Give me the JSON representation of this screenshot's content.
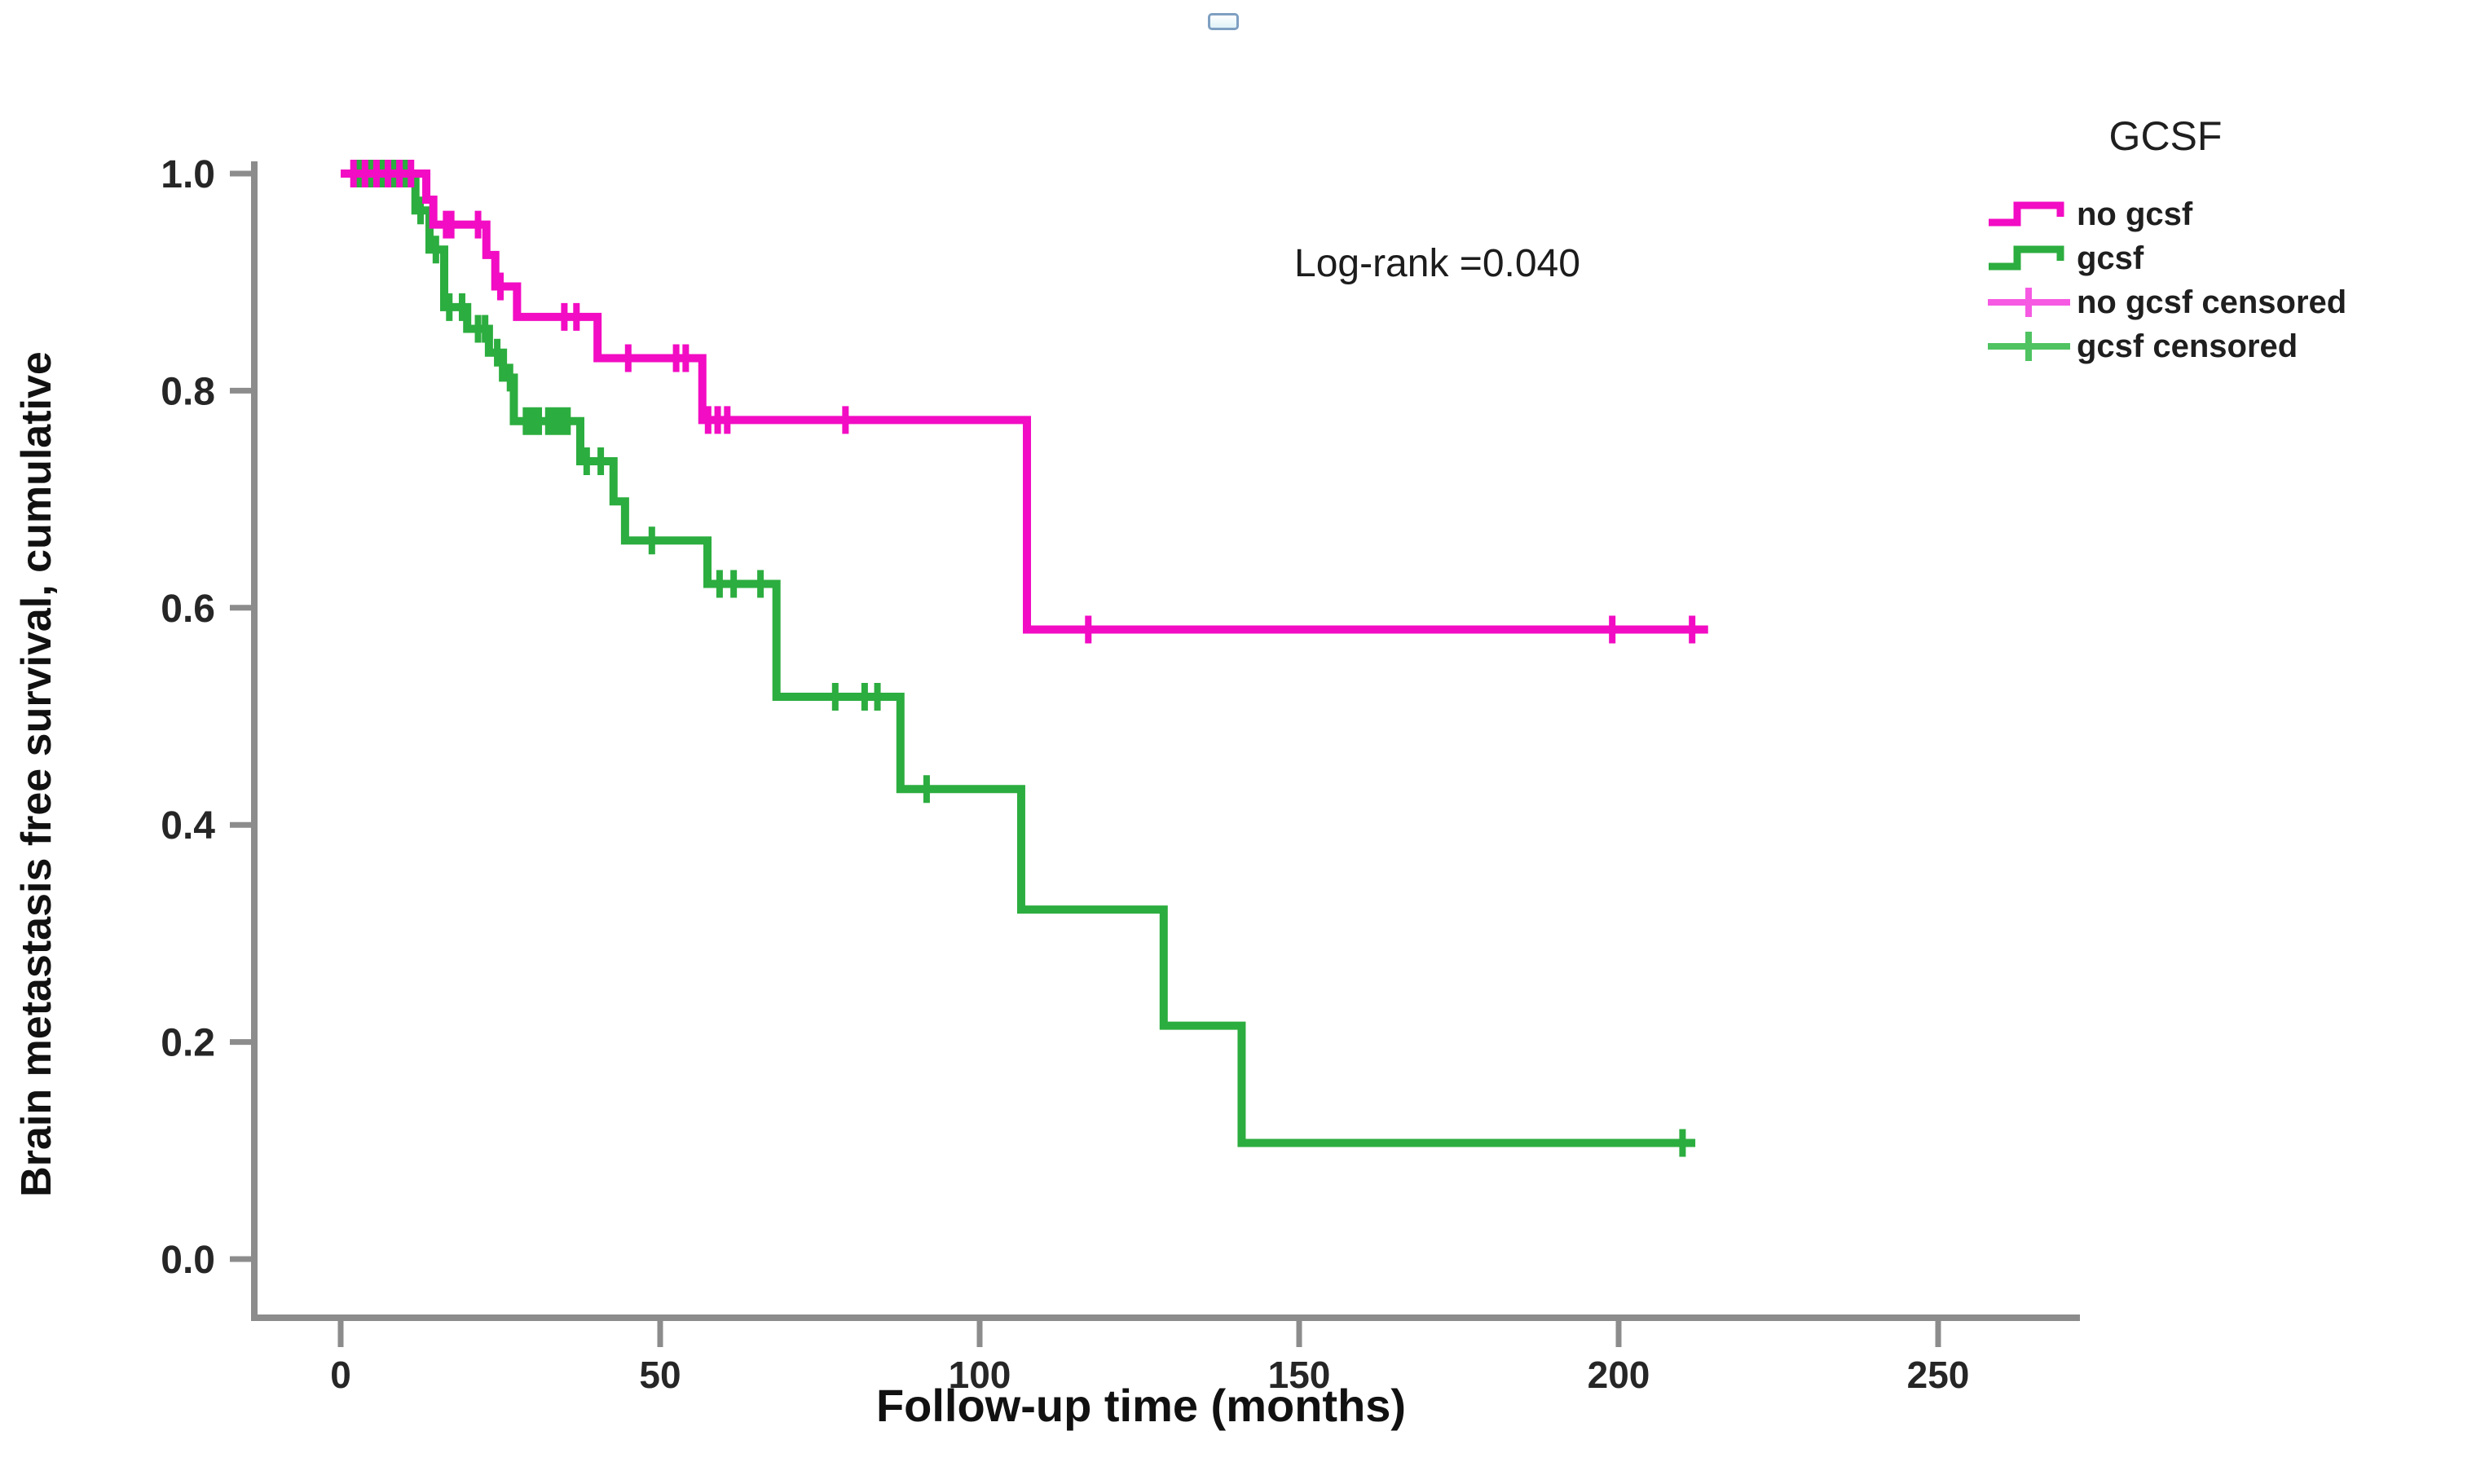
{
  "page": {
    "background": "#ffffff"
  },
  "icons": {
    "collapsed_image_placeholder": "small rounded rectangle, blue border, light fill"
  },
  "colors": {
    "no_gcsf": "#f20cc3",
    "gcsf": "#2cad3f",
    "no_gcsf_censored": "#f65ae3",
    "gcsf_censored": "#4fc361",
    "axis": "#8c8c8c",
    "text": "#111111"
  },
  "annotation": {
    "log_rank": "Log-rank =0.040"
  },
  "legend": {
    "title": "GCSF",
    "items": [
      {
        "label": "no gcsf",
        "marker": "step-line",
        "color_key": "no_gcsf"
      },
      {
        "label": "gcsf",
        "marker": "step-line",
        "color_key": "gcsf"
      },
      {
        "label": "no gcsf censored",
        "marker": "plus-line",
        "color_key": "no_gcsf_censored"
      },
      {
        "label": "gcsf censored",
        "marker": "plus-line",
        "color_key": "gcsf_censored"
      }
    ]
  },
  "chart_data": {
    "type": "line",
    "subtype": "kaplan-meier-step",
    "title": "",
    "xlabel": "Follow-up time (months)",
    "ylabel": "Brain metastasis free survival, cumulative",
    "annotation": "Log-rank =0.040",
    "grid": false,
    "legend_position": "right",
    "xlim": [
      0,
      265
    ],
    "ylim": [
      0.0,
      1.05
    ],
    "x_ticks": [
      0,
      50,
      100,
      150,
      200,
      250
    ],
    "y_ticks": [
      "0.0",
      "0.2",
      "0.4",
      "0.6",
      "0.8",
      "1.0"
    ],
    "series": [
      {
        "name": "gcsf",
        "color_key": "gcsf",
        "censor_color_key": "gcsf",
        "end_time": 212,
        "steps": [
          [
            0,
            1.0
          ],
          [
            11.7,
            0.966
          ],
          [
            13.9,
            0.93
          ],
          [
            16.2,
            0.877
          ],
          [
            19.8,
            0.857
          ],
          [
            23.2,
            0.835
          ],
          [
            25.4,
            0.812
          ],
          [
            27.1,
            0.772
          ],
          [
            37.5,
            0.735
          ],
          [
            42.7,
            0.698
          ],
          [
            44.5,
            0.662
          ],
          [
            57.4,
            0.622
          ],
          [
            68.2,
            0.518
          ],
          [
            87.6,
            0.433
          ],
          [
            106.5,
            0.322
          ],
          [
            128.8,
            0.215
          ],
          [
            141,
            0.107
          ]
        ],
        "censored": [
          [
            2.9,
            1.0
          ],
          [
            4.7,
            1.0
          ],
          [
            6.5,
            1.0
          ],
          [
            8.3,
            1.0
          ],
          [
            10.1,
            1.0
          ],
          [
            12.5,
            0.966
          ],
          [
            14.9,
            0.93
          ],
          [
            17.0,
            0.877
          ],
          [
            19.0,
            0.877
          ],
          [
            21.5,
            0.857
          ],
          [
            22.6,
            0.857
          ],
          [
            24.5,
            0.835
          ],
          [
            26.5,
            0.812
          ],
          [
            29,
            0.772
          ],
          [
            30,
            0.772
          ],
          [
            31,
            0.772
          ],
          [
            32.5,
            0.772
          ],
          [
            33.5,
            0.772
          ],
          [
            34.5,
            0.772
          ],
          [
            35.5,
            0.772
          ],
          [
            38.5,
            0.735
          ],
          [
            40.7,
            0.735
          ],
          [
            48.7,
            0.662
          ],
          [
            59.3,
            0.622
          ],
          [
            61.5,
            0.622
          ],
          [
            65.7,
            0.622
          ],
          [
            77.4,
            0.518
          ],
          [
            82,
            0.518
          ],
          [
            84,
            0.518
          ],
          [
            91.7,
            0.433
          ],
          [
            210,
            0.107
          ]
        ]
      },
      {
        "name": "no gcsf",
        "color_key": "no_gcsf",
        "censor_color_key": "no_gcsf",
        "end_time": 214,
        "steps": [
          [
            0,
            1.0
          ],
          [
            13.4,
            0.976
          ],
          [
            14.5,
            0.953
          ],
          [
            22.8,
            0.925
          ],
          [
            24.2,
            0.896
          ],
          [
            27.6,
            0.868
          ],
          [
            40.2,
            0.83
          ],
          [
            56.6,
            0.773
          ],
          [
            107.4,
            0.58
          ]
        ],
        "censored": [
          [
            2.0,
            1.0
          ],
          [
            3.8,
            1.0
          ],
          [
            5.6,
            1.0
          ],
          [
            7.4,
            1.0
          ],
          [
            9.2,
            1.0
          ],
          [
            11.0,
            1.0
          ],
          [
            16.5,
            0.953
          ],
          [
            17.3,
            0.953
          ],
          [
            21.5,
            0.953
          ],
          [
            25.0,
            0.896
          ],
          [
            35.0,
            0.868
          ],
          [
            36.9,
            0.868
          ],
          [
            45.0,
            0.83
          ],
          [
            52.5,
            0.83
          ],
          [
            54.0,
            0.83
          ],
          [
            57.5,
            0.773
          ],
          [
            59.0,
            0.773
          ],
          [
            60.5,
            0.773
          ],
          [
            79.0,
            0.773
          ],
          [
            117,
            0.58
          ],
          [
            199,
            0.58
          ],
          [
            211.5,
            0.58
          ]
        ]
      }
    ]
  }
}
